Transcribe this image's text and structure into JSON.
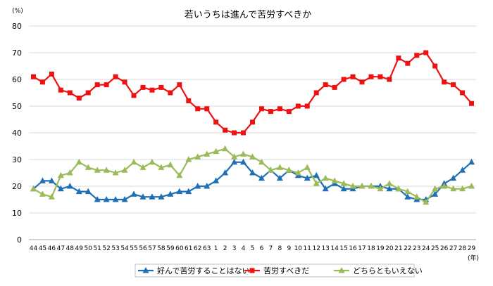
{
  "chart_data": {
    "type": "line",
    "title": "若いうちは進んで苦労すべきか",
    "y_unit": "(%)",
    "x_unit": "(年)",
    "ylim": [
      0,
      80
    ],
    "yticks": [
      0,
      10,
      20,
      30,
      40,
      50,
      60,
      70,
      80
    ],
    "grid": "horizontal",
    "legend_position": "bottom",
    "categories": [
      "44",
      "45",
      "46",
      "47",
      "48",
      "49",
      "50",
      "51",
      "52",
      "53",
      "54",
      "55",
      "56",
      "57",
      "58",
      "59",
      "60",
      "61",
      "62",
      "63",
      "1",
      "2",
      "3",
      "4",
      "5",
      "6",
      "7",
      "8",
      "9",
      "10",
      "11",
      "12",
      "13",
      "14",
      "15",
      "16",
      "17",
      "18",
      "19",
      "20",
      "21",
      "22",
      "23",
      "24",
      "25",
      "26",
      "27",
      "28",
      "29"
    ],
    "series": [
      {
        "name": "好んで苦労することはない",
        "color": "#1f6fb5",
        "marker": "triangle",
        "values": [
          19,
          22,
          22,
          19,
          20,
          18,
          18,
          15,
          15,
          15,
          15,
          17,
          16,
          16,
          16,
          17,
          18,
          18,
          20,
          20,
          22,
          25,
          29,
          29,
          25,
          23,
          26,
          23,
          26,
          24,
          23,
          24,
          19,
          21,
          19,
          19,
          20,
          20,
          20,
          19,
          19,
          16,
          15,
          15,
          17,
          21,
          23,
          26,
          29
        ]
      },
      {
        "name": "苦労すべきだ",
        "color": "#ee1111",
        "marker": "square",
        "values": [
          61,
          59,
          62,
          56,
          55,
          53,
          55,
          58,
          58,
          61,
          59,
          54,
          57,
          56,
          57,
          55,
          58,
          52,
          49,
          49,
          44,
          41,
          40,
          40,
          44,
          49,
          48,
          49,
          48,
          50,
          50,
          55,
          58,
          57,
          60,
          61,
          59,
          61,
          61,
          60,
          68,
          66,
          69,
          70,
          65,
          59,
          58,
          55,
          51
        ]
      },
      {
        "name": "どちらともいえない",
        "color": "#9bbb59",
        "marker": "triangle",
        "values": [
          19,
          17,
          16,
          24,
          25,
          29,
          27,
          26,
          26,
          25,
          26,
          29,
          27,
          29,
          27,
          28,
          24,
          30,
          31,
          32,
          33,
          34,
          31,
          32,
          31,
          29,
          26,
          27,
          26,
          25,
          27,
          21,
          23,
          22,
          21,
          20,
          20,
          20,
          19,
          21,
          19,
          18,
          16,
          14,
          19,
          20,
          19,
          19,
          20
        ]
      }
    ]
  }
}
